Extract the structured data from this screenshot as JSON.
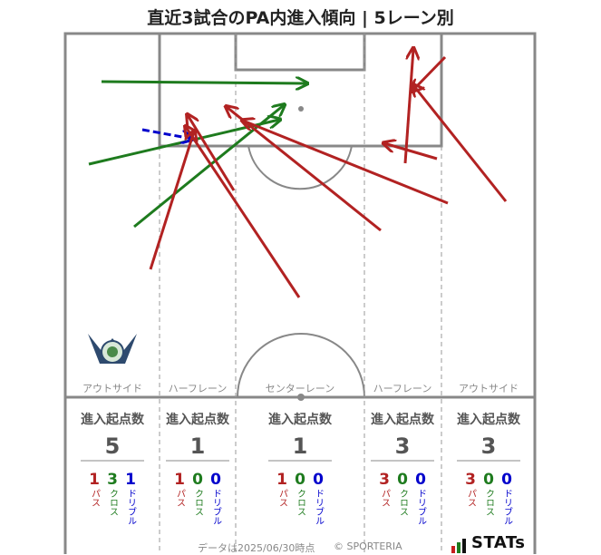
{
  "title": "直近3試合のPA内進入傾向 | 5レーン別",
  "colors": {
    "pass": "#b22222",
    "cross": "#1e7b1e",
    "dribble": "#0000cc",
    "line": "#888888"
  },
  "chart_data": {
    "type": "pitch-arrows",
    "lanes": [
      {
        "name": "アウトサイド",
        "total_label": "進入起点数",
        "total": 5,
        "pass": 1,
        "cross": 3,
        "dribble": 1
      },
      {
        "name": "ハーフレーン",
        "total_label": "進入起点数",
        "total": 1,
        "pass": 1,
        "cross": 0,
        "dribble": 0
      },
      {
        "name": "センターレーン",
        "total_label": "進入起点数",
        "total": 1,
        "pass": 1,
        "cross": 0,
        "dribble": 0
      },
      {
        "name": "ハーフレーン",
        "total_label": "進入起点数",
        "total": 3,
        "pass": 3,
        "cross": 0,
        "dribble": 0
      },
      {
        "name": "アウトサイド",
        "total_label": "進入起点数",
        "total": 3,
        "pass": 3,
        "cross": 0,
        "dribble": 0
      }
    ],
    "type_labels": {
      "pass": "パス",
      "cross": "クロス",
      "dribble": "ドリブル"
    }
  },
  "footer": {
    "date": "データは2025/06/30時点",
    "copyright": "© SPORTERIA",
    "brand": "STATs"
  }
}
